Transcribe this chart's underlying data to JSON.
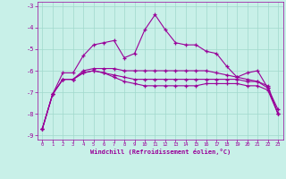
{
  "x": [
    0,
    1,
    2,
    3,
    4,
    5,
    6,
    7,
    8,
    9,
    10,
    11,
    12,
    13,
    14,
    15,
    16,
    17,
    18,
    19,
    20,
    21,
    22,
    23
  ],
  "line1": [
    -8.7,
    -7.1,
    -6.1,
    -6.1,
    -5.3,
    -4.8,
    -4.7,
    -4.6,
    -5.4,
    -5.2,
    -4.1,
    -3.4,
    -4.1,
    -4.7,
    -4.8,
    -4.8,
    -5.1,
    -5.2,
    -5.8,
    -6.3,
    -6.1,
    -6.0,
    -6.8,
    -7.8
  ],
  "line2": [
    -8.7,
    -7.1,
    -6.4,
    -6.4,
    -6.0,
    -5.9,
    -5.9,
    -5.9,
    -6.0,
    -6.0,
    -6.0,
    -6.0,
    -6.0,
    -6.0,
    -6.0,
    -6.0,
    -6.0,
    -6.1,
    -6.2,
    -6.3,
    -6.4,
    -6.5,
    -6.8,
    -8.0
  ],
  "line3": [
    -8.7,
    -7.1,
    -6.4,
    -6.4,
    -6.1,
    -6.0,
    -6.1,
    -6.2,
    -6.3,
    -6.4,
    -6.4,
    -6.4,
    -6.4,
    -6.4,
    -6.4,
    -6.4,
    -6.4,
    -6.4,
    -6.4,
    -6.4,
    -6.5,
    -6.5,
    -6.7,
    -8.0
  ],
  "line4": [
    -8.7,
    -7.1,
    -6.4,
    -6.4,
    -6.1,
    -6.0,
    -6.1,
    -6.3,
    -6.5,
    -6.6,
    -6.7,
    -6.7,
    -6.7,
    -6.7,
    -6.7,
    -6.7,
    -6.6,
    -6.6,
    -6.6,
    -6.6,
    -6.7,
    -6.7,
    -6.9,
    -8.0
  ],
  "background_color": "#c8f0e8",
  "grid_color": "#a0d8cc",
  "line_color": "#990099",
  "xlabel": "Windchill (Refroidissement éolien,°C)",
  "ylim": [
    -9.2,
    -2.8
  ],
  "xlim": [
    -0.5,
    23.5
  ],
  "yticks": [
    -9,
    -8,
    -7,
    -6,
    -5,
    -4,
    -3
  ],
  "xticks": [
    0,
    1,
    2,
    3,
    4,
    5,
    6,
    7,
    8,
    9,
    10,
    11,
    12,
    13,
    14,
    15,
    16,
    17,
    18,
    19,
    20,
    21,
    22,
    23
  ],
  "marker": "+"
}
